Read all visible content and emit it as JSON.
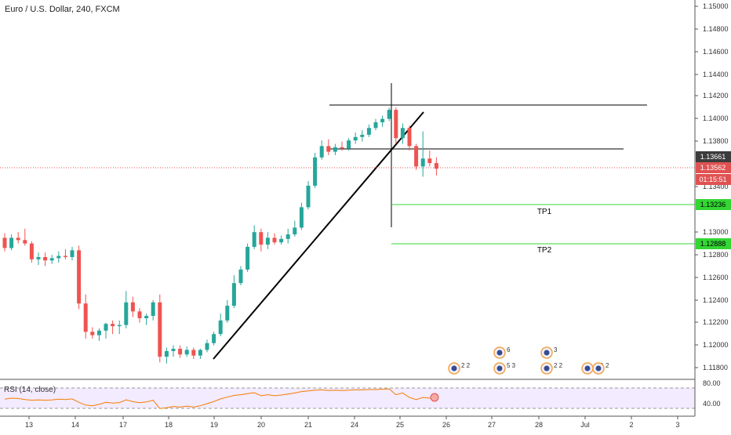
{
  "symbol": {
    "title": "Euro / U.S. Dollar, 240, FXCM"
  },
  "rsi": {
    "label": "RSI (14, close)",
    "levels": [
      "80.00",
      "40.00"
    ],
    "upper": 70,
    "lower": 30
  },
  "y_axis": {
    "ticks": [
      "1.15000",
      "1.14800",
      "1.14600",
      "1.14400",
      "1.14200",
      "1.14000",
      "1.13800",
      "1.13400",
      "1.13000",
      "1.12800",
      "1.12600",
      "1.12400",
      "1.12200",
      "1.12000",
      "1.11800"
    ]
  },
  "x_axis": {
    "ticks": [
      "13",
      "14",
      "17",
      "18",
      "19",
      "20",
      "21",
      "24",
      "25",
      "26",
      "27",
      "28",
      "Jul",
      "2",
      "3"
    ]
  },
  "price_labels": [
    {
      "name": "high-line-price",
      "value": "1.13661",
      "bg": "#3c3c3c",
      "fg": "#ffffff"
    },
    {
      "name": "last-price",
      "value": "1.13562",
      "bg": "#e05252",
      "fg": "#ffffff"
    },
    {
      "name": "countdown",
      "value": "01:15:51",
      "bg": "#e05252",
      "fg": "#ffffff"
    },
    {
      "name": "tp1-price",
      "value": "1.13236",
      "bg": "#33d633",
      "fg": "#000000"
    },
    {
      "name": "tp2-price",
      "value": "1.12888",
      "bg": "#33d633",
      "fg": "#000000"
    }
  ],
  "annotations": {
    "tp1": "TP1",
    "tp2": "TP2"
  },
  "events": [
    {
      "label": "2 2"
    },
    {
      "label": "6"
    },
    {
      "label": "5 3"
    },
    {
      "label": "3"
    },
    {
      "label": "2 2"
    },
    {
      "label": "2 2"
    },
    {
      "label": "2"
    }
  ],
  "colors": {
    "up": "#26a69a",
    "down": "#ef5350",
    "tp": "#33d633",
    "trend": "#000000",
    "rsi": "#f57c00",
    "rsiBand": "#f3ebff"
  },
  "chart_data": {
    "type": "candlestick",
    "title": "Euro / U.S. Dollar, 240, FXCM",
    "ylim": [
      1.117,
      1.1505
    ],
    "candles": [
      [
        1.1295,
        1.1299,
        1.1283,
        1.1286
      ],
      [
        1.1286,
        1.1298,
        1.1284,
        1.1295
      ],
      [
        1.1295,
        1.13,
        1.129,
        1.1293
      ],
      [
        1.1293,
        1.1303,
        1.1288,
        1.129
      ],
      [
        1.129,
        1.1292,
        1.1273,
        1.1276
      ],
      [
        1.1276,
        1.1282,
        1.1271,
        1.1278
      ],
      [
        1.1278,
        1.1282,
        1.127,
        1.1275
      ],
      [
        1.1275,
        1.128,
        1.1272,
        1.1277
      ],
      [
        1.1277,
        1.1283,
        1.1273,
        1.1279
      ],
      [
        1.1279,
        1.1285,
        1.1276,
        1.1278
      ],
      [
        1.1278,
        1.1287,
        1.1275,
        1.1284
      ],
      [
        1.1284,
        1.1288,
        1.1232,
        1.1237
      ],
      [
        1.1237,
        1.1245,
        1.1206,
        1.1212
      ],
      [
        1.1212,
        1.1216,
        1.1206,
        1.1209
      ],
      [
        1.1209,
        1.1215,
        1.1204,
        1.1213
      ],
      [
        1.1213,
        1.122,
        1.1206,
        1.1219
      ],
      [
        1.1219,
        1.1222,
        1.121,
        1.1217
      ],
      [
        1.1217,
        1.1222,
        1.121,
        1.1218
      ],
      [
        1.1218,
        1.1248,
        1.1215,
        1.1238
      ],
      [
        1.1238,
        1.1243,
        1.1225,
        1.123
      ],
      [
        1.123,
        1.1233,
        1.122,
        1.1224
      ],
      [
        1.1224,
        1.1228,
        1.1218,
        1.1226
      ],
      [
        1.1226,
        1.124,
        1.1222,
        1.1238
      ],
      [
        1.1238,
        1.1245,
        1.1185,
        1.119
      ],
      [
        1.119,
        1.1198,
        1.1184,
        1.1195
      ],
      [
        1.1195,
        1.12,
        1.119,
        1.1197
      ],
      [
        1.1197,
        1.12,
        1.1189,
        1.1192
      ],
      [
        1.1192,
        1.1199,
        1.119,
        1.1196
      ],
      [
        1.1196,
        1.1198,
        1.1188,
        1.1191
      ],
      [
        1.1191,
        1.1197,
        1.1188,
        1.1196
      ],
      [
        1.1196,
        1.1205,
        1.1194,
        1.1202
      ],
      [
        1.1202,
        1.1212,
        1.12,
        1.121
      ],
      [
        1.121,
        1.1228,
        1.1208,
        1.1222
      ],
      [
        1.1222,
        1.124,
        1.122,
        1.1235
      ],
      [
        1.1235,
        1.1262,
        1.1233,
        1.1255
      ],
      [
        1.1255,
        1.127,
        1.1253,
        1.1267
      ],
      [
        1.1267,
        1.129,
        1.1265,
        1.1287
      ],
      [
        1.1287,
        1.1306,
        1.1285,
        1.13
      ],
      [
        1.13,
        1.1303,
        1.1283,
        1.1289
      ],
      [
        1.1289,
        1.13,
        1.1285,
        1.1295
      ],
      [
        1.1295,
        1.1299,
        1.1289,
        1.1291
      ],
      [
        1.1291,
        1.1297,
        1.1289,
        1.1294
      ],
      [
        1.1294,
        1.1303,
        1.129,
        1.1298
      ],
      [
        1.1298,
        1.131,
        1.1296,
        1.1304
      ],
      [
        1.1304,
        1.1326,
        1.1302,
        1.1322
      ],
      [
        1.1322,
        1.1345,
        1.132,
        1.1341
      ],
      [
        1.1341,
        1.137,
        1.1339,
        1.1366
      ],
      [
        1.1366,
        1.1381,
        1.1364,
        1.1376
      ],
      [
        1.1376,
        1.1382,
        1.1368,
        1.1371
      ],
      [
        1.1371,
        1.1378,
        1.1368,
        1.1375
      ],
      [
        1.1375,
        1.138,
        1.1372,
        1.1374
      ],
      [
        1.1374,
        1.1383,
        1.1372,
        1.1381
      ],
      [
        1.1381,
        1.1388,
        1.1378,
        1.1384
      ],
      [
        1.1384,
        1.139,
        1.138,
        1.1386
      ],
      [
        1.1386,
        1.1395,
        1.1384,
        1.1392
      ],
      [
        1.1392,
        1.14,
        1.139,
        1.1397
      ],
      [
        1.1397,
        1.1403,
        1.1393,
        1.14
      ],
      [
        1.14,
        1.141,
        1.1398,
        1.1408
      ],
      [
        1.1408,
        1.141,
        1.1378,
        1.1383
      ],
      [
        1.1383,
        1.1396,
        1.1378,
        1.1392
      ],
      [
        1.1392,
        1.1394,
        1.1372,
        1.1376
      ],
      [
        1.1376,
        1.1378,
        1.1355,
        1.1358
      ],
      [
        1.1358,
        1.1389,
        1.1349,
        1.1365
      ],
      [
        1.1365,
        1.1372,
        1.1358,
        1.1361
      ],
      [
        1.1361,
        1.1366,
        1.135,
        1.1356
      ]
    ],
    "lines": {
      "resistance_high": 1.1412,
      "resistance_mid": 1.1373,
      "tp1": 1.13236,
      "tp2": 1.12888,
      "current": 1.13562
    }
  }
}
